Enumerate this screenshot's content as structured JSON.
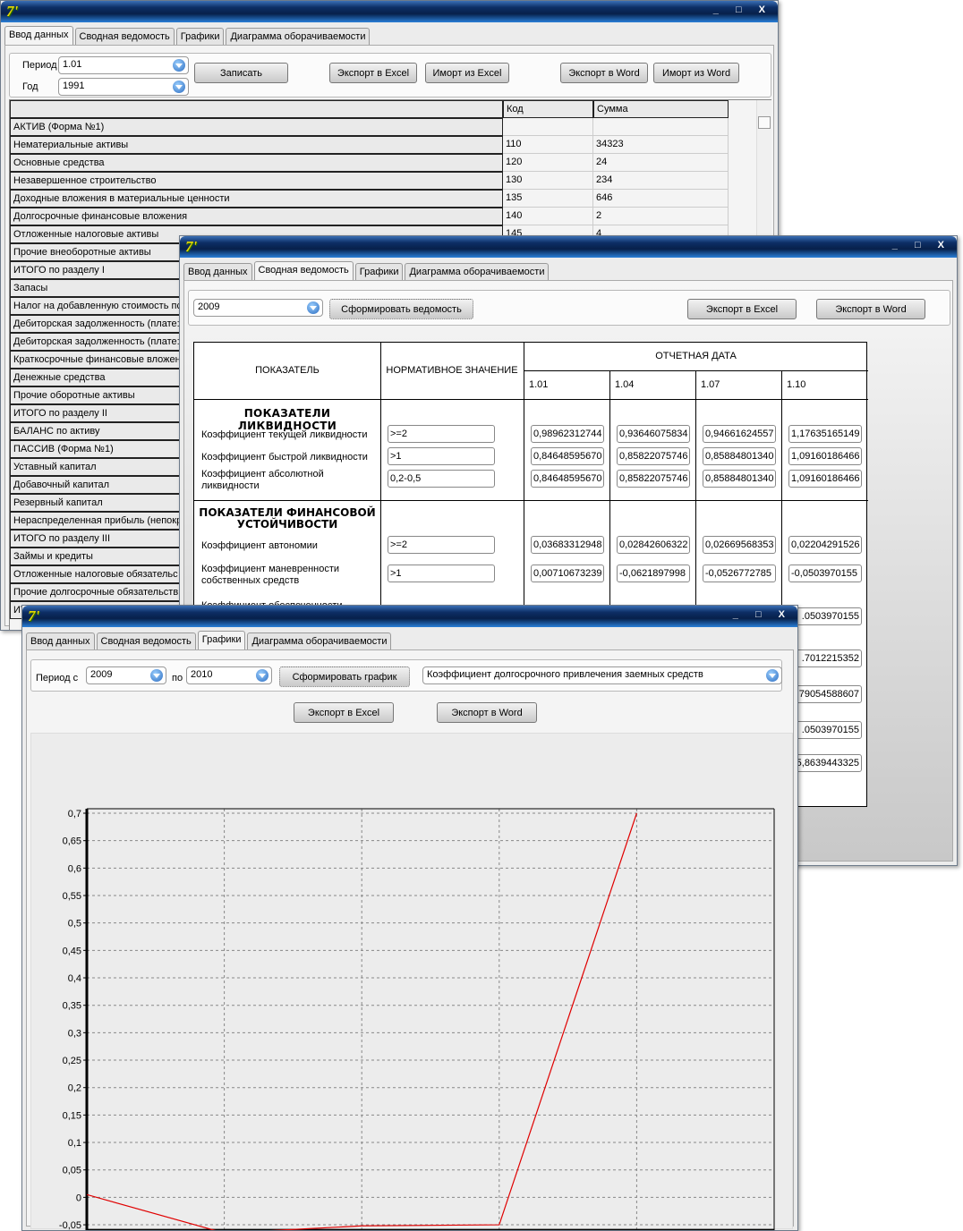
{
  "app": {
    "logo": "7'",
    "controls": "_ □ X"
  },
  "tabs": [
    "Ввод данных",
    "Сводная ведомость",
    "Графики",
    "Диаграмма оборачиваемости"
  ],
  "win1": {
    "active_tab": 0,
    "period_label": "Период",
    "period_value": "1.01",
    "year_label": "Год",
    "year_value": "1991",
    "save": "Записать",
    "export_excel": "Экспорт в Excel",
    "import_excel": "Имopт из Excel",
    "export_word": "Экспорт в Word",
    "import_word": "Имopт из Word",
    "columns": [
      "",
      "Код",
      "Сумма"
    ],
    "rows": [
      [
        "АКТИВ (Форма №1)",
        "",
        ""
      ],
      [
        "Нематериальные активы",
        "110",
        "34323"
      ],
      [
        "Основные средства",
        "120",
        "24"
      ],
      [
        "Незавершенное строительство",
        "130",
        "234"
      ],
      [
        "Доходные вложения в материальные ценности",
        "135",
        "646"
      ],
      [
        "Долгосрочные финансовые вложения",
        "140",
        "2"
      ],
      [
        "Отложенные налоговые активы",
        "145",
        "4"
      ],
      [
        "Прочие внеоборотные активы",
        "",
        ""
      ],
      [
        "ИТОГО по разделу I",
        "",
        ""
      ],
      [
        "Запасы",
        "",
        ""
      ],
      [
        "Налог на добавленную стоимость пс",
        "",
        ""
      ],
      [
        "Дебиторская задолженность (плате:",
        "",
        ""
      ],
      [
        "Дебиторская задолженность (плате:",
        "",
        ""
      ],
      [
        "Краткосрочные финансовые вложен",
        "",
        ""
      ],
      [
        "Денежные средства",
        "",
        ""
      ],
      [
        "Прочие оборотные активы",
        "",
        ""
      ],
      [
        "ИТОГО по разделу II",
        "",
        ""
      ],
      [
        "БАЛАНС по активу",
        "",
        ""
      ],
      [
        "ПАССИВ (Форма №1)",
        "",
        ""
      ],
      [
        "Уставный капитал",
        "",
        ""
      ],
      [
        "Добавочный капитал",
        "",
        ""
      ],
      [
        "Резервный капитал",
        "",
        ""
      ],
      [
        "Нераспределенная прибыль (непокр",
        "",
        ""
      ],
      [
        "ИТОГО по разделу III",
        "",
        ""
      ],
      [
        "Займы и кредиты",
        "",
        ""
      ],
      [
        "Отложенные налоговые обязательс",
        "",
        ""
      ],
      [
        "Прочие долгосрочные обязательств",
        "",
        ""
      ],
      [
        "ИТ",
        "",
        ""
      ]
    ]
  },
  "win2": {
    "active_tab": 1,
    "year_value": "2009",
    "form": "Сформировать ведомость",
    "export_excel": "Экспорт в Excel",
    "export_word": "Экспорт в Word",
    "h_indicator": "ПОКАЗАТЕЛЬ",
    "h_norm": "НОРМАТИВНОЕ ЗНАЧЕНИЕ",
    "h_date": "ОТЧЕТНАЯ ДАТА",
    "dates": [
      "1.01",
      "1.04",
      "1.07",
      "1.10"
    ],
    "sec1": "ПОКАЗАТЕЛИ ЛИКВИДНОСТИ",
    "sec2": "ПОКАЗАТЕЛИ ФИНАНСОВОЙ УСТОЙЧИВОСТИ",
    "rows": [
      {
        "name": "Коэффициент текущей ликвидности",
        "norm": ">=2",
        "v": [
          "0,98962312744",
          "0,93646075834",
          "0,94661624557",
          "1,17635165149"
        ]
      },
      {
        "name": "Коэффициент быстрой ликвидности",
        "norm": ">1",
        "v": [
          "0,84648595670",
          "0,85822075746",
          "0,85884801340",
          "1,09160186466"
        ]
      },
      {
        "name": "Коэффициент абсолютной ликвидности",
        "norm": "0,2-0,5",
        "v": [
          "0,84648595670",
          "0,85822075746",
          "0,85884801340",
          "1,09160186466"
        ]
      },
      {
        "name": "Коэффициент автономии",
        "norm": ">=2",
        "v": [
          "0,03683312948",
          "0,02842606322",
          "0,02669568353",
          "0,02204291526"
        ]
      },
      {
        "name": "Коэффициент маневренности собственных средств",
        "norm": ">1",
        "v": [
          "0,00710673239",
          "-0,0621897998",
          "-0,0526772785",
          "-0,0503970155"
        ]
      }
    ],
    "partial_label": "Коэффициент обеспеченности",
    "hidden_tail": [
      ".0503970155",
      ".7012215352",
      "79054588607",
      ".0503970155",
      "5,8639443325"
    ]
  },
  "win3": {
    "active_tab": 2,
    "from_label": "Период с",
    "from_value": "2009",
    "to_label": "по",
    "to_value": "2010",
    "form": "Сформировать график",
    "indicator": "Коэффициент долгосрочного привлечения заемных средств",
    "export_excel": "Экспорт в Excel",
    "export_word": "Экспорт в Word"
  },
  "chart_data": {
    "type": "line",
    "x": [
      0,
      1,
      2,
      3,
      4
    ],
    "values": [
      0.005,
      -0.065,
      -0.052,
      -0.05,
      0.7
    ],
    "xlim": [
      0,
      5
    ],
    "ylim": [
      -0.06,
      0.7
    ],
    "xticks": [
      "0",
      "1",
      "2",
      "3",
      "4",
      "5"
    ],
    "yticks": [
      "0,7",
      "0,65",
      "0,6",
      "0,55",
      "0,5",
      "0,45",
      "0,4",
      "0,35",
      "0,3",
      "0,25",
      "0,2",
      "0,15",
      "0,1",
      "0,05",
      "0",
      "-0,05"
    ],
    "grid": true,
    "line_color": "#e00000"
  }
}
